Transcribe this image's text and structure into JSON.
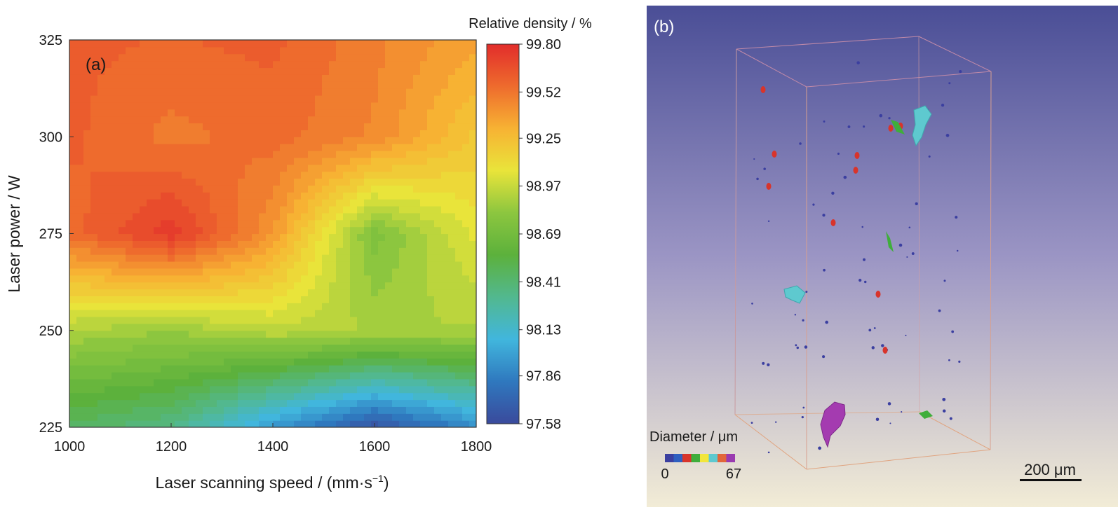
{
  "chart_data": [
    {
      "type": "heatmap",
      "panel_label": "(a)",
      "xlabel": "Laser scanning speed / (mm·s",
      "xlabel_sup": "−1",
      "xlabel_tail": ")",
      "ylabel": "Laser power / W",
      "x_ticks": [
        "1000",
        "1200",
        "1400",
        "1600",
        "1800"
      ],
      "y_ticks": [
        "325",
        "300",
        "275",
        "250",
        "225"
      ],
      "xlim": [
        1000,
        1800
      ],
      "ylim": [
        225,
        325
      ],
      "colorbar_title": "Relative density / %",
      "colorbar_ticks": [
        "99.80",
        "99.52",
        "99.25",
        "98.97",
        "98.69",
        "98.41",
        "98.13",
        "97.86",
        "97.58"
      ],
      "zlim": [
        97.58,
        99.8
      ],
      "grid_x": [
        1000,
        1200,
        1400,
        1600,
        1800
      ],
      "grid_y": [
        225,
        250,
        275,
        300,
        325
      ],
      "z": [
        [
          98.45,
          98.35,
          97.95,
          97.62,
          97.9
        ],
        [
          98.9,
          98.85,
          98.95,
          98.9,
          98.9
        ],
        [
          99.55,
          99.75,
          99.4,
          98.75,
          99.05
        ],
        [
          99.6,
          99.5,
          99.55,
          99.45,
          99.2
        ],
        [
          99.6,
          99.58,
          99.6,
          99.48,
          99.35
        ]
      ],
      "colors": [
        "#3a4a9c",
        "#2f78be",
        "#41b6dd",
        "#52b88f",
        "#5cb13c",
        "#8cc63f",
        "#e9e43a",
        "#f7b233",
        "#ee6b2d",
        "#e22d2b"
      ]
    },
    {
      "type": "scatter",
      "panel_label": "(b)",
      "legend_title": "Diameter / μm",
      "legend_min": "0",
      "legend_max": "67",
      "legend_colors": [
        "#3b3fa0",
        "#2f5fc0",
        "#d8342b",
        "#3fae3b",
        "#f2e63a",
        "#5ec9cf",
        "#e2663a",
        "#9a3bb0"
      ],
      "scale_bar": "200 μm",
      "background_top": "#4a4e96",
      "background_bottom": "#f2ecd6"
    }
  ]
}
